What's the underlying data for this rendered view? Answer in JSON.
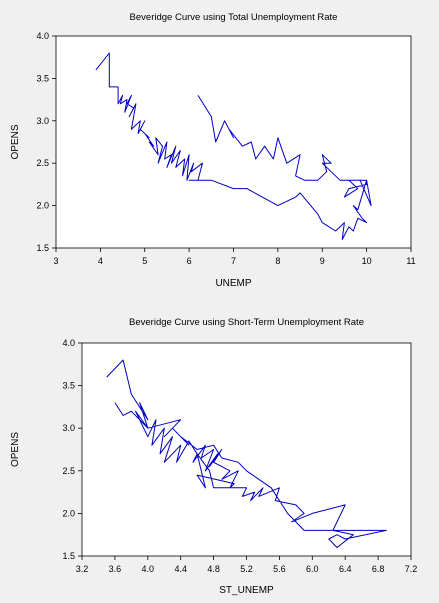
{
  "colors": {
    "background": "#f0f0f0",
    "plot_background": "#ffffff",
    "series": "#0000c0"
  },
  "chart_data": [
    {
      "type": "line",
      "title": "Beveridge Curve using Total Unemployment Rate",
      "xlabel": "UNEMP",
      "ylabel": "OPENS",
      "xlim": [
        3,
        11
      ],
      "ylim": [
        1.5,
        4.0
      ],
      "xticks": [
        "3",
        "4",
        "5",
        "6",
        "7",
        "8",
        "9",
        "10",
        "11"
      ],
      "yticks": [
        "1.5",
        "2.0",
        "2.5",
        "3.0",
        "3.5",
        "4.0"
      ],
      "grid": false,
      "legend": "none",
      "series": [
        {
          "x": [
            3.9,
            4.2,
            4.2,
            4.4,
            4.4,
            4.5,
            4.45,
            4.6,
            4.55,
            4.7,
            4.6,
            4.75,
            4.65,
            4.8,
            4.7,
            4.9,
            4.85,
            5.0,
            4.9,
            5.1,
            5.0,
            5.2,
            5.1,
            5.3,
            5.25,
            5.4,
            5.3,
            5.5,
            5.45,
            5.6,
            5.5,
            5.7,
            5.6,
            5.8,
            5.7,
            5.9,
            5.85,
            6.0,
            5.95,
            6.1,
            6.05,
            6.3,
            6.2,
            6.0,
            6.5,
            7.0,
            7.3,
            8.0,
            8.4,
            8.5,
            8.9,
            9.0,
            9.3,
            9.5,
            9.45,
            9.6,
            9.7,
            9.8,
            10.0,
            9.9,
            9.7,
            9.8,
            10.0,
            10.1,
            9.85,
            9.6,
            9.8,
            9.5,
            9.6,
            10.0,
            10.0,
            9.4,
            9.0,
            9.2,
            9.0,
            9.1,
            8.9,
            8.6,
            8.4,
            8.5,
            8.2,
            8.0,
            7.9,
            7.7,
            7.5,
            7.4,
            7.2,
            6.9,
            7.0,
            6.8,
            6.6,
            6.5,
            6.2
          ],
          "y": [
            3.6,
            3.8,
            3.4,
            3.4,
            3.2,
            3.3,
            3.2,
            3.25,
            3.1,
            3.3,
            3.2,
            3.15,
            3.05,
            3.2,
            2.9,
            3.0,
            2.85,
            3.0,
            2.9,
            2.8,
            2.85,
            2.7,
            2.75,
            2.6,
            2.8,
            2.7,
            2.5,
            2.75,
            2.55,
            2.6,
            2.45,
            2.7,
            2.5,
            2.65,
            2.45,
            2.55,
            2.35,
            2.6,
            2.3,
            2.5,
            2.4,
            2.5,
            2.3,
            2.3,
            2.3,
            2.2,
            2.2,
            2.0,
            2.1,
            2.15,
            1.9,
            1.8,
            1.7,
            1.8,
            1.6,
            1.75,
            1.7,
            1.85,
            1.8,
            1.85,
            2.0,
            1.95,
            2.3,
            2.0,
            2.3,
            2.3,
            2.2,
            2.1,
            2.2,
            2.25,
            2.3,
            2.3,
            2.5,
            2.5,
            2.6,
            2.4,
            2.3,
            2.3,
            2.35,
            2.6,
            2.5,
            2.8,
            2.55,
            2.7,
            2.55,
            2.75,
            2.7,
            2.9,
            2.8,
            3.0,
            2.75,
            3.05,
            3.3
          ]
        }
      ]
    },
    {
      "type": "line",
      "title": "Beveridge Curve using Short-Term Unemployment Rate",
      "xlabel": "ST_UNEMP",
      "ylabel": "OPENS",
      "xlim": [
        3.2,
        7.2
      ],
      "ylim": [
        1.5,
        4.0
      ],
      "xticks": [
        "3.2",
        "3.6",
        "4.0",
        "4.4",
        "4.8",
        "5.2",
        "5.6",
        "6.0",
        "6.4",
        "6.8",
        "7.2"
      ],
      "yticks": [
        "1.5",
        "2.0",
        "2.5",
        "3.0",
        "3.5",
        "4.0"
      ],
      "grid": false,
      "legend": "none",
      "series": [
        {
          "x": [
            3.5,
            3.7,
            3.8,
            3.8,
            4.0,
            3.9,
            4.0,
            3.85,
            4.0,
            4.1,
            4.05,
            4.2,
            4.15,
            4.3,
            4.2,
            4.4,
            4.35,
            4.5,
            4.6,
            4.55,
            4.7,
            4.65,
            4.8,
            4.7,
            4.85,
            4.75,
            4.9,
            4.8,
            5.0,
            4.9,
            5.1,
            5.0,
            5.05,
            4.6,
            4.7,
            4.6,
            4.75,
            4.8,
            5.2,
            5.15,
            5.3,
            5.25,
            5.4,
            5.35,
            5.6,
            5.55,
            5.8,
            5.9,
            5.75,
            6.0,
            6.4,
            6.25,
            6.5,
            6.3,
            6.2,
            6.3,
            6.4,
            6.9,
            6.5,
            6.1,
            6.4,
            5.9,
            5.7,
            5.5,
            5.2,
            5.1,
            4.9,
            4.8,
            4.6,
            4.4,
            4.5,
            4.3,
            4.2,
            4.4,
            4.0,
            3.8,
            3.7,
            3.6
          ],
          "y": [
            3.6,
            3.8,
            3.4,
            3.4,
            3.1,
            3.3,
            3.0,
            3.2,
            2.9,
            3.1,
            2.8,
            3.0,
            2.7,
            2.9,
            2.6,
            2.8,
            2.6,
            2.85,
            2.7,
            2.6,
            2.8,
            2.65,
            2.75,
            2.5,
            2.7,
            2.55,
            2.75,
            2.6,
            2.5,
            2.4,
            2.5,
            2.3,
            2.35,
            2.45,
            2.3,
            2.7,
            2.5,
            2.3,
            2.3,
            2.2,
            2.25,
            2.15,
            2.3,
            2.2,
            2.3,
            2.15,
            2.1,
            2.0,
            1.9,
            2.0,
            2.1,
            1.8,
            1.75,
            1.6,
            1.7,
            1.75,
            1.7,
            1.8,
            1.8,
            1.8,
            1.8,
            1.8,
            2.0,
            2.3,
            2.5,
            2.6,
            2.65,
            2.8,
            2.75,
            2.9,
            2.8,
            3.0,
            2.9,
            3.1,
            3.0,
            3.2,
            3.15,
            3.3
          ]
        }
      ]
    }
  ]
}
